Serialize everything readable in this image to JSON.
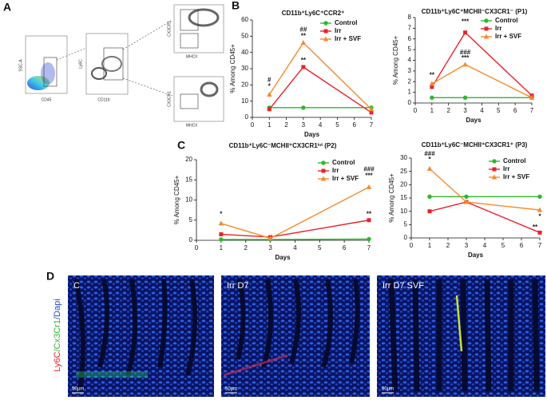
{
  "panels": {
    "a": "A",
    "b": "B",
    "c": "C",
    "d": "D"
  },
  "flow": {
    "ssc": "SSC-A",
    "cd45": "CD45",
    "ly6c": "Ly6C",
    "cd11b": "CD11b",
    "cx3cr1_top": "CX3CR1",
    "mhcii_top": "MHCII",
    "cx3cr1_bottom": "CX3CR1",
    "mhcii_bottom": "MHCII"
  },
  "chart_data": [
    {
      "type": "line",
      "title": "CD11b⁺Ly6C⁺CCR2⁺",
      "xlabel": "Days",
      "ylabel": "% Among CD45+",
      "x": [
        1,
        3,
        7
      ],
      "xlim": [
        0,
        7
      ],
      "xticks": [
        0,
        1,
        2,
        3,
        4,
        5,
        6,
        7
      ],
      "ylim": [
        0,
        60
      ],
      "yticks": [
        0,
        10,
        20,
        30,
        40,
        50,
        60
      ],
      "legend": "upper right",
      "series": [
        {
          "name": "Control",
          "color": "#2db82d",
          "marker": "circle",
          "values": [
            6,
            6,
            6
          ]
        },
        {
          "name": "Irr",
          "color": "#e8232a",
          "marker": "square",
          "values": [
            5,
            31,
            3
          ]
        },
        {
          "name": "Irr + SVF",
          "color": "#f58a2e",
          "marker": "triangle",
          "values": [
            14,
            46,
            5
          ]
        }
      ],
      "annotations": [
        "#",
        "*",
        "##",
        "**",
        "**"
      ]
    },
    {
      "type": "line",
      "title": "CD11b⁺Ly6C⁺MCHII⁻CX3CR1⁻ (P1)",
      "xlabel": "Days",
      "ylabel": "% Among CD45+",
      "x": [
        1,
        3,
        7
      ],
      "xlim": [
        0,
        7
      ],
      "xticks": [
        0,
        1,
        2,
        3,
        4,
        5,
        6,
        7
      ],
      "ylim": [
        0,
        8
      ],
      "yticks": [
        0,
        1,
        2,
        3,
        4,
        5,
        6,
        7,
        8
      ],
      "legend": "upper right",
      "series": [
        {
          "name": "Control",
          "color": "#2db82d",
          "marker": "circle",
          "values": [
            0.5,
            0.5,
            0.5
          ]
        },
        {
          "name": "Irr",
          "color": "#e8232a",
          "marker": "square",
          "values": [
            1.5,
            6.6,
            0.7
          ]
        },
        {
          "name": "Irr + SVF",
          "color": "#f58a2e",
          "marker": "triangle",
          "values": [
            1.8,
            3.6,
            0.5
          ]
        }
      ],
      "annotations": [
        "**",
        "***",
        "###",
        "***"
      ]
    },
    {
      "type": "line",
      "title": "CD11b⁺Ly6C⁻MCHII⁺CX3CR1ⁱⁿᵗ (P2)",
      "xlabel": "Days",
      "ylabel": "% Among CD45+",
      "x": [
        1,
        3,
        7
      ],
      "xlim": [
        0,
        7
      ],
      "xticks": [
        0,
        1,
        2,
        3,
        4,
        5,
        6,
        7
      ],
      "ylim": [
        0,
        20
      ],
      "yticks": [
        0,
        5,
        10,
        15,
        20
      ],
      "legend": "upper right",
      "series": [
        {
          "name": "Control",
          "color": "#2db82d",
          "marker": "circle",
          "values": [
            0.2,
            0.2,
            0.3
          ]
        },
        {
          "name": "Irr",
          "color": "#e8232a",
          "marker": "square",
          "values": [
            1.5,
            0.8,
            5
          ]
        },
        {
          "name": "Irr + SVF",
          "color": "#f58a2e",
          "marker": "triangle",
          "values": [
            4.2,
            0.5,
            13.2
          ]
        }
      ],
      "annotations": [
        "*",
        "###",
        "***",
        "**"
      ]
    },
    {
      "type": "line",
      "title": "CD11b⁺Ly6C⁻MCHII⁺CX3CR1⁺ (P3)",
      "xlabel": "Days",
      "ylabel": "% Among CD45+",
      "x": [
        1,
        3,
        7
      ],
      "xlim": [
        0,
        7
      ],
      "xticks": [
        0,
        1,
        2,
        3,
        4,
        5,
        6,
        7
      ],
      "ylim": [
        0,
        30
      ],
      "yticks": [
        0,
        5,
        10,
        15,
        20,
        25,
        30
      ],
      "legend": "upper right",
      "series": [
        {
          "name": "Control",
          "color": "#2db82d",
          "marker": "circle",
          "values": [
            15.5,
            15.5,
            15.5
          ]
        },
        {
          "name": "Irr",
          "color": "#e8232a",
          "marker": "square",
          "values": [
            10,
            13.5,
            2
          ]
        },
        {
          "name": "Irr + SVF",
          "color": "#f58a2e",
          "marker": "triangle",
          "values": [
            26,
            13.5,
            10.5
          ]
        }
      ],
      "annotations": [
        "###",
        "*",
        "*",
        "**"
      ]
    }
  ],
  "images": {
    "stain_ly6c": "Ly6C",
    "stain_cx3cr1": "/Cx3Cr1",
    "stain_dapi": "/Dapi",
    "labels": [
      "C",
      "Irr D7",
      "Irr D7 SVF"
    ],
    "scale": [
      "50µm",
      "50µm",
      "50µm"
    ]
  }
}
